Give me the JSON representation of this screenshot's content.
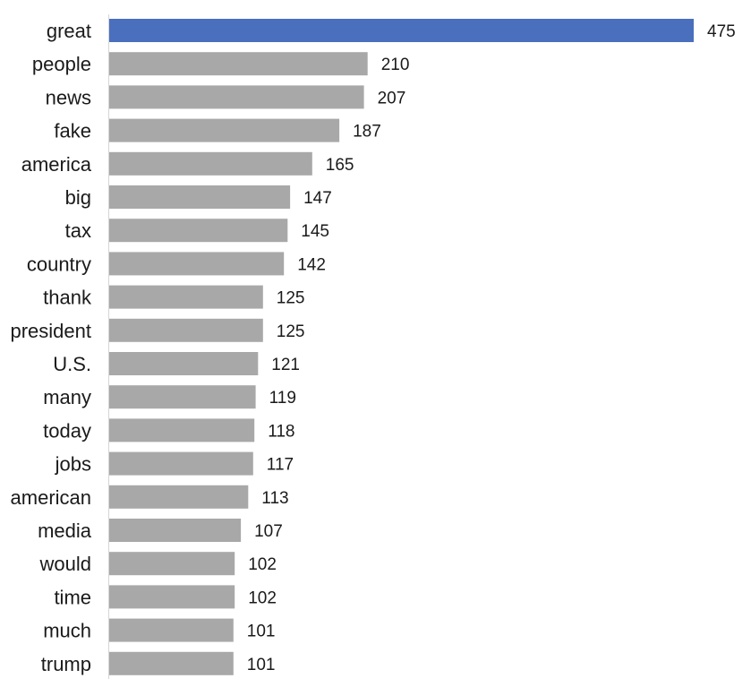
{
  "chart_data": {
    "type": "bar",
    "orientation": "horizontal",
    "title": "",
    "xlabel": "",
    "ylabel": "",
    "categories": [
      "great",
      "people",
      "news",
      "fake",
      "america",
      "big",
      "tax",
      "country",
      "thank",
      "president",
      "U.S.",
      "many",
      "today",
      "jobs",
      "american",
      "media",
      "would",
      "time",
      "much",
      "trump"
    ],
    "values": [
      475,
      210,
      207,
      187,
      165,
      147,
      145,
      142,
      125,
      125,
      121,
      119,
      118,
      117,
      113,
      107,
      102,
      102,
      101,
      101
    ],
    "xlim": [
      0,
      475
    ],
    "grid": false,
    "legend": "none",
    "highlight_index": 0,
    "colors": {
      "highlight": "#4a6fbd",
      "default": "#a9a8a8",
      "axis": "#d6d6d6",
      "text": "#1a1a1a"
    }
  }
}
